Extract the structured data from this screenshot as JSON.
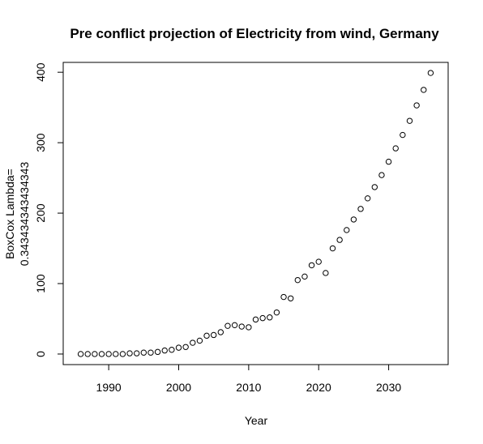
{
  "chart_data": {
    "type": "scatter",
    "title": "Pre conflict projection of Electricity from wind, Germany",
    "xlabel": "Year",
    "ylabel_lines": [
      "BoxCox Lambda=",
      "0.343434343434343"
    ],
    "xlim": [
      1983.5,
      2038.5
    ],
    "ylim": [
      -15,
      414
    ],
    "x_ticks": [
      1990,
      2000,
      2010,
      2020,
      2030
    ],
    "y_ticks": [
      0,
      100,
      200,
      300,
      400
    ],
    "x_tick_labels": [
      "1990",
      "2000",
      "2010",
      "2020",
      "2030"
    ],
    "y_tick_labels": [
      "0",
      "100",
      "200",
      "300",
      "400"
    ],
    "grid": false,
    "marker": "open-circle",
    "point_color": "#000000",
    "x": [
      1986,
      1987,
      1988,
      1989,
      1990,
      1991,
      1992,
      1993,
      1994,
      1995,
      1996,
      1997,
      1998,
      1999,
      2000,
      2001,
      2002,
      2003,
      2004,
      2005,
      2006,
      2007,
      2008,
      2009,
      2010,
      2011,
      2012,
      2013,
      2014,
      2015,
      2016,
      2017,
      2018,
      2019,
      2020,
      2021,
      2022,
      2023,
      2024,
      2025,
      2026,
      2027,
      2028,
      2029,
      2030,
      2031,
      2032,
      2033,
      2034,
      2035,
      2036
    ],
    "y": [
      0,
      0,
      0,
      0,
      0,
      0,
      0,
      1,
      1,
      2,
      2,
      3,
      5,
      6,
      9,
      10,
      16,
      19,
      26,
      27,
      31,
      40,
      41,
      39,
      38,
      49,
      51,
      52,
      59,
      81,
      79,
      105,
      110,
      126,
      131,
      115,
      150,
      162,
      176,
      191,
      206,
      221,
      237,
      254,
      273,
      292,
      311,
      331,
      353,
      375,
      399
    ]
  }
}
